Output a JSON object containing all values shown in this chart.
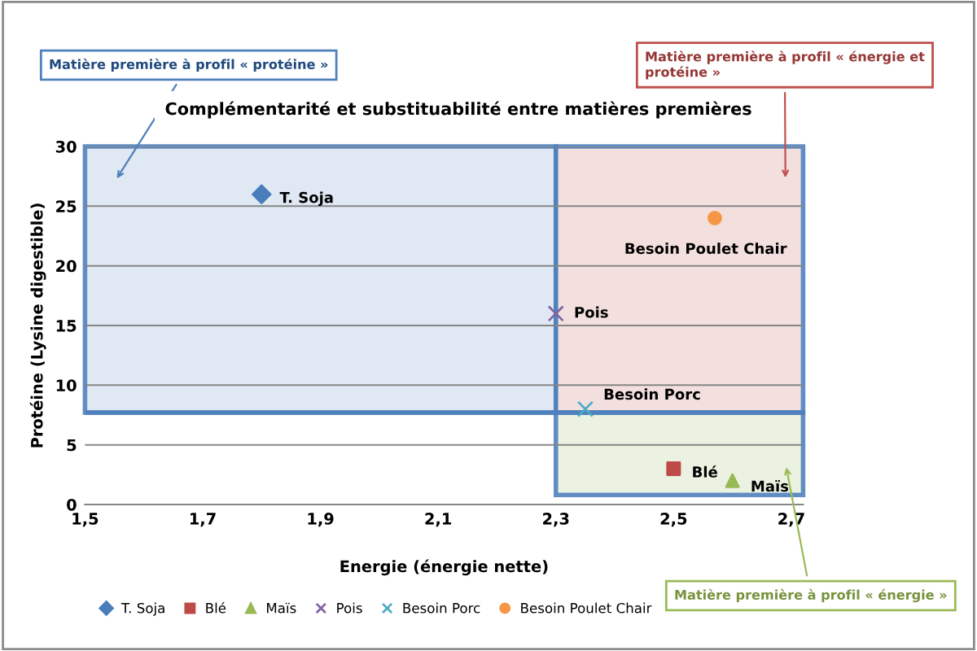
{
  "chart_data": {
    "type": "scatter",
    "title": "Complémentarité et substituabilité entre matières premières",
    "xlabel": "Energie (énergie nette)",
    "ylabel": "Protéine (Lysine digestible)",
    "xlim": [
      1.5,
      2.72
    ],
    "ylim": [
      0,
      30
    ],
    "xticks": [
      {
        "value": 1.5,
        "label": "1,5"
      },
      {
        "value": 1.7,
        "label": "1,7"
      },
      {
        "value": 1.9,
        "label": "1,9"
      },
      {
        "value": 2.1,
        "label": "2,1"
      },
      {
        "value": 2.3,
        "label": "2,3"
      },
      {
        "value": 2.5,
        "label": "2,5"
      },
      {
        "value": 2.7,
        "label": "2,7"
      }
    ],
    "yticks": [
      0,
      5,
      10,
      15,
      20,
      25,
      30
    ],
    "grid": "y",
    "legend": "bottom",
    "series": [
      {
        "name": "T. Soja",
        "color": "#4a7ebb",
        "marker": "diamond",
        "x": [
          1.8
        ],
        "values": [
          26
        ]
      },
      {
        "name": "Blé",
        "color": "#be4b48",
        "marker": "square",
        "x": [
          2.5
        ],
        "values": [
          3
        ]
      },
      {
        "name": "Maïs",
        "color": "#98b954",
        "marker": "triangle",
        "x": [
          2.6
        ],
        "values": [
          2
        ]
      },
      {
        "name": "Pois",
        "color": "#8064a2",
        "marker": "cross",
        "x": [
          2.3
        ],
        "values": [
          16
        ]
      },
      {
        "name": "Besoin Porc",
        "color": "#4bacc6",
        "marker": "cross",
        "x": [
          2.35
        ],
        "values": [
          8
        ]
      },
      {
        "name": "Besoin Poulet Chair",
        "color": "#f79646",
        "marker": "circle",
        "x": [
          2.57
        ],
        "values": [
          24
        ]
      }
    ],
    "annotations": [
      {
        "text": "T. Soja",
        "x": 1.8,
        "y": 26
      },
      {
        "text": "Blé",
        "x": 2.5,
        "y": 3
      },
      {
        "text": "Maïs",
        "x": 2.6,
        "y": 2
      },
      {
        "text": "Pois",
        "x": 2.3,
        "y": 16
      },
      {
        "text": "Besoin Porc",
        "x": 2.35,
        "y": 8
      },
      {
        "text": "Besoin Poulet Chair",
        "x": 2.57,
        "y": 24
      }
    ],
    "bands": [
      {
        "axis": "x",
        "from": 1.5,
        "to": 2.3,
        "label": "Matière première à profil « protéine »",
        "color": "#dce6f2"
      },
      {
        "axis": "x",
        "from": 2.3,
        "to": 2.72,
        "label": "Matière première à profil « énergie et protéine »",
        "color": "#f2dcdb"
      },
      {
        "axis": "x",
        "from": 2.3,
        "to": 2.72,
        "label": "Matière première à profil « énergie »",
        "color": "#ebf1de"
      }
    ],
    "ref_lines": [
      {
        "axis": "y",
        "value": 7.7,
        "color": "#4f81bd"
      }
    ]
  }
}
